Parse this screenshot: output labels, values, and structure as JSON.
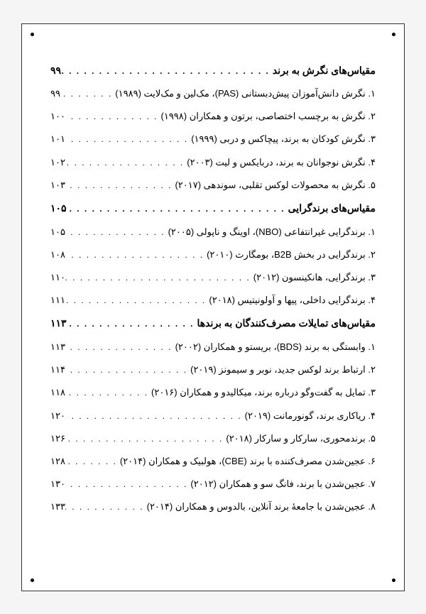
{
  "dots": ". . . . . . . . . . . . . . . . . . . . . . . . . . . . . . . . . . . . . . . . . . . . . . . . . . . . . . . . . . . . . . . . . . . . . .",
  "sections": [
    {
      "heading": {
        "title": "مقیاس‌های نگرش به برند",
        "page": "۹۹"
      },
      "items": [
        {
          "title": "۱. نگرش دانش‌آموزان پیش‌دبستانی (PAS)، مک‌لین و مک‌لایت (۱۹۸۹)",
          "page": "۹۹"
        },
        {
          "title": "۲. نگرش به برچسب اختصاصی، برتون و همکاران (۱۹۹۸)",
          "page": "۱۰۰"
        },
        {
          "title": "۳. نگرش کودکان به برند، پیچاکس و دربی (۱۹۹۹)",
          "page": "۱۰۱"
        },
        {
          "title": "۴. نگرش نوجوانان به برند، دربایکس و لیت (۲۰۰۳)",
          "page": "۱۰۲"
        },
        {
          "title": "۵. نگرش به محصولات لوکس تقلبی، سوندهی (۲۰۱۷)",
          "page": "۱۰۳"
        }
      ]
    },
    {
      "heading": {
        "title": "مقیاس‌های برندگرایی",
        "page": "۱۰۵"
      },
      "items": [
        {
          "title": "۱. برندگرایی غیرانتفاعی (NBO)، اوینگ و ناپولی (۲۰۰۵)",
          "page": "۱۰۵"
        },
        {
          "title": "۲. برندگرایی در بخش B2B، بومگارث (۲۰۱۰)",
          "page": "۱۰۸"
        },
        {
          "title": "۳. برندگرایی، هانکینسون (۲۰۱۲)",
          "page": "۱۱۰"
        },
        {
          "title": "۴. برندگرایی داخلی، پیها و آولونیتیس (۲۰۱۸)",
          "page": "۱۱۱"
        }
      ]
    },
    {
      "heading": {
        "title": "مقیاس‌های تمایلات مصرف‌کنندگان به برندها",
        "page": "۱۱۳"
      },
      "items": [
        {
          "title": "۱. وابستگی به برند (BDS)، بریستو و همکاران (۲۰۰۲)",
          "page": "۱۱۳"
        },
        {
          "title": "۲. ارتباط برند لوکس جدید، نوبر و سیمونز (۲۰۱۹)",
          "page": "۱۱۴"
        },
        {
          "title": "۳. تمایل به گفت‌وگو درباره برند، میکالیدو و همکاران (۲۰۱۶)",
          "page": "۱۱۸"
        },
        {
          "title": "۴. ریاکاری برند، گونورمانت (۲۰۱۹)",
          "page": "۱۲۰"
        },
        {
          "title": "۵. برندمحوری، سارکار و سارکار (۲۰۱۸)",
          "page": "۱۲۶"
        },
        {
          "title": "۶. عجین‌شدن مصرف‌کننده با برند (CBE)، هولبیک و همکاران (۲۰۱۴)",
          "page": "۱۲۸"
        },
        {
          "title": "۷. عجین‌شدن با برند، فانگ سو و همکاران (۲۰۱۲)",
          "page": "۱۳۰"
        },
        {
          "title": "۸. عجین‌شدن با جامعهٔ برند آنلاین، بالدوس و همکاران (۲۰۱۴)",
          "page": "۱۳۳"
        }
      ]
    }
  ]
}
